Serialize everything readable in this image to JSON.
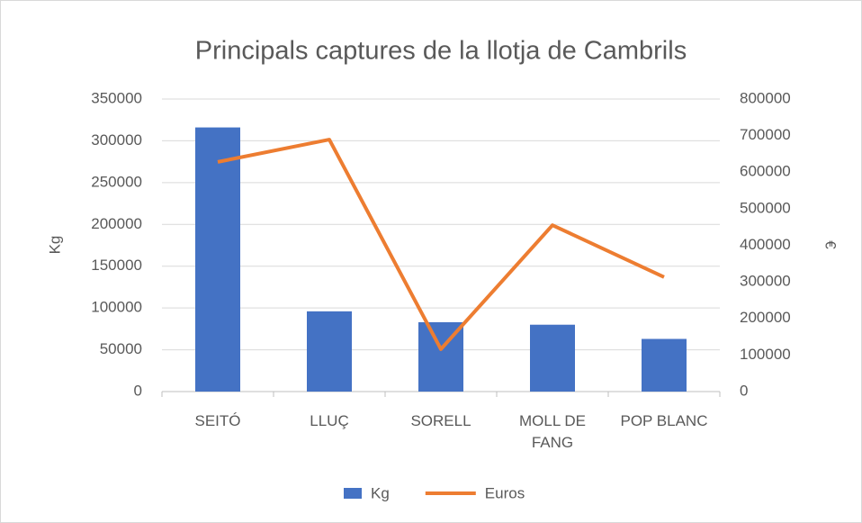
{
  "chart_data": {
    "type": "bar_line",
    "title": "Principals captures de la llotja de Cambrils",
    "categories": [
      "SEITÓ",
      "LLUÇ",
      "SORELL",
      "MOLL DE FANG",
      "POP BLANC"
    ],
    "series": [
      {
        "name": "Kg",
        "type": "bar",
        "color": "#4472c4",
        "values": [
          316000,
          96000,
          83000,
          80000,
          63000
        ]
      },
      {
        "name": "Euros",
        "type": "line",
        "color": "#ed7d31",
        "axis": "y2",
        "values": [
          628000,
          689000,
          116000,
          455000,
          313000
        ]
      }
    ],
    "ylabel": "Kg",
    "y2label": "€",
    "ylim": [
      0,
      350000
    ],
    "yticks": [
      0,
      50000,
      100000,
      150000,
      200000,
      250000,
      300000,
      350000
    ],
    "y2lim": [
      0,
      800000
    ],
    "y2ticks": [
      0,
      100000,
      200000,
      300000,
      400000,
      500000,
      600000,
      700000,
      800000
    ],
    "grid": true,
    "legend": "bottom"
  }
}
